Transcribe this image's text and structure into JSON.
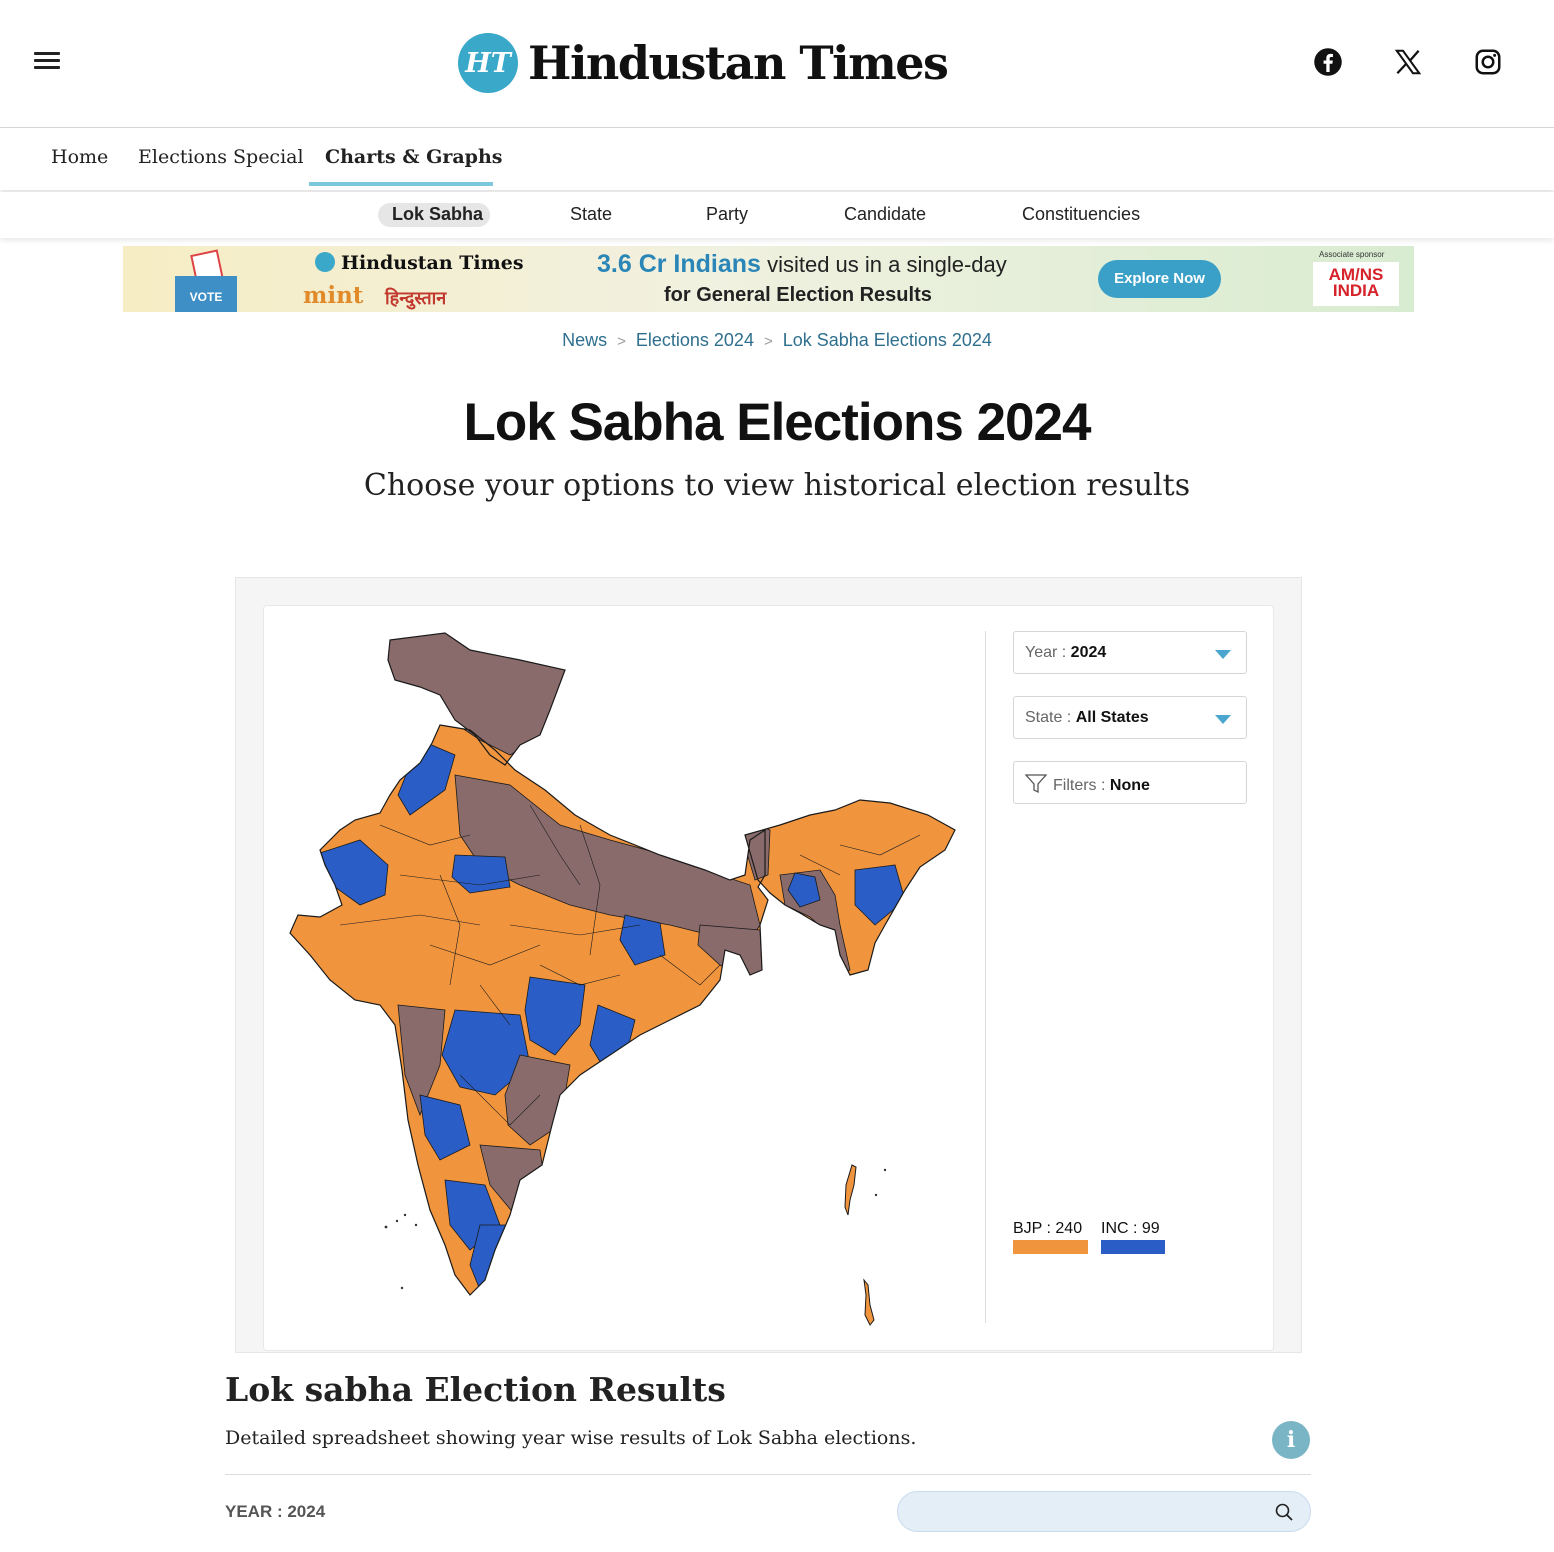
{
  "header": {
    "logo_badge": "HT",
    "logo_text": "Hindustan Times",
    "social": [
      "facebook-icon",
      "x-icon",
      "instagram-icon"
    ]
  },
  "nav_primary": [
    {
      "label": "Home"
    },
    {
      "label": "Elections Special"
    },
    {
      "label": "Charts & Graphs",
      "active": true
    }
  ],
  "nav_secondary": [
    {
      "label": "Lok Sabha",
      "active": true
    },
    {
      "label": "State"
    },
    {
      "label": "Party"
    },
    {
      "label": "Candidate"
    },
    {
      "label": "Constituencies"
    }
  ],
  "banner": {
    "vote_label": "VOTE",
    "ht_text": "Hindustan Times",
    "mint_text": "mint",
    "hindi_text": "हिन्दुस्तान",
    "headline_highlight": "3.6 Cr Indians",
    "headline_rest": "visited us in a single-day",
    "headline_line2": "for General Election Results",
    "button": "Explore Now",
    "sponsor_label": "Associate sponsor",
    "sponsor_line1": "AM/NS",
    "sponsor_line2": "INDIA"
  },
  "breadcrumb": [
    "News",
    "Elections 2024",
    "Lok Sabha Elections 2024"
  ],
  "breadcrumb_sep": ">",
  "page": {
    "title": "Lok Sabha Elections 2024",
    "subtitle": "Choose your options to view historical election results"
  },
  "controls": {
    "year": {
      "label": "Year :",
      "value": "2024"
    },
    "state": {
      "label": "State :",
      "value": "All States"
    },
    "filters": {
      "label": "Filters :",
      "value": "None"
    }
  },
  "legend": [
    {
      "label": "BJP : 240",
      "party": "BJP",
      "seats": 240,
      "color": "#f0953e"
    },
    {
      "label": "INC : 99",
      "party": "INC",
      "seats": 99,
      "color": "#2a5ec6"
    }
  ],
  "map_colors": {
    "bjp": "#f0953e",
    "inc": "#2a5ec6",
    "others": "#8a6b6b",
    "border": "#1a1a1a"
  },
  "results": {
    "title": "Lok sabha Election Results",
    "description": "Detailed spreadsheet showing year wise results of Lok Sabha elections.",
    "info_icon": "i",
    "year_label": "YEAR : 2024",
    "search_placeholder": ""
  }
}
